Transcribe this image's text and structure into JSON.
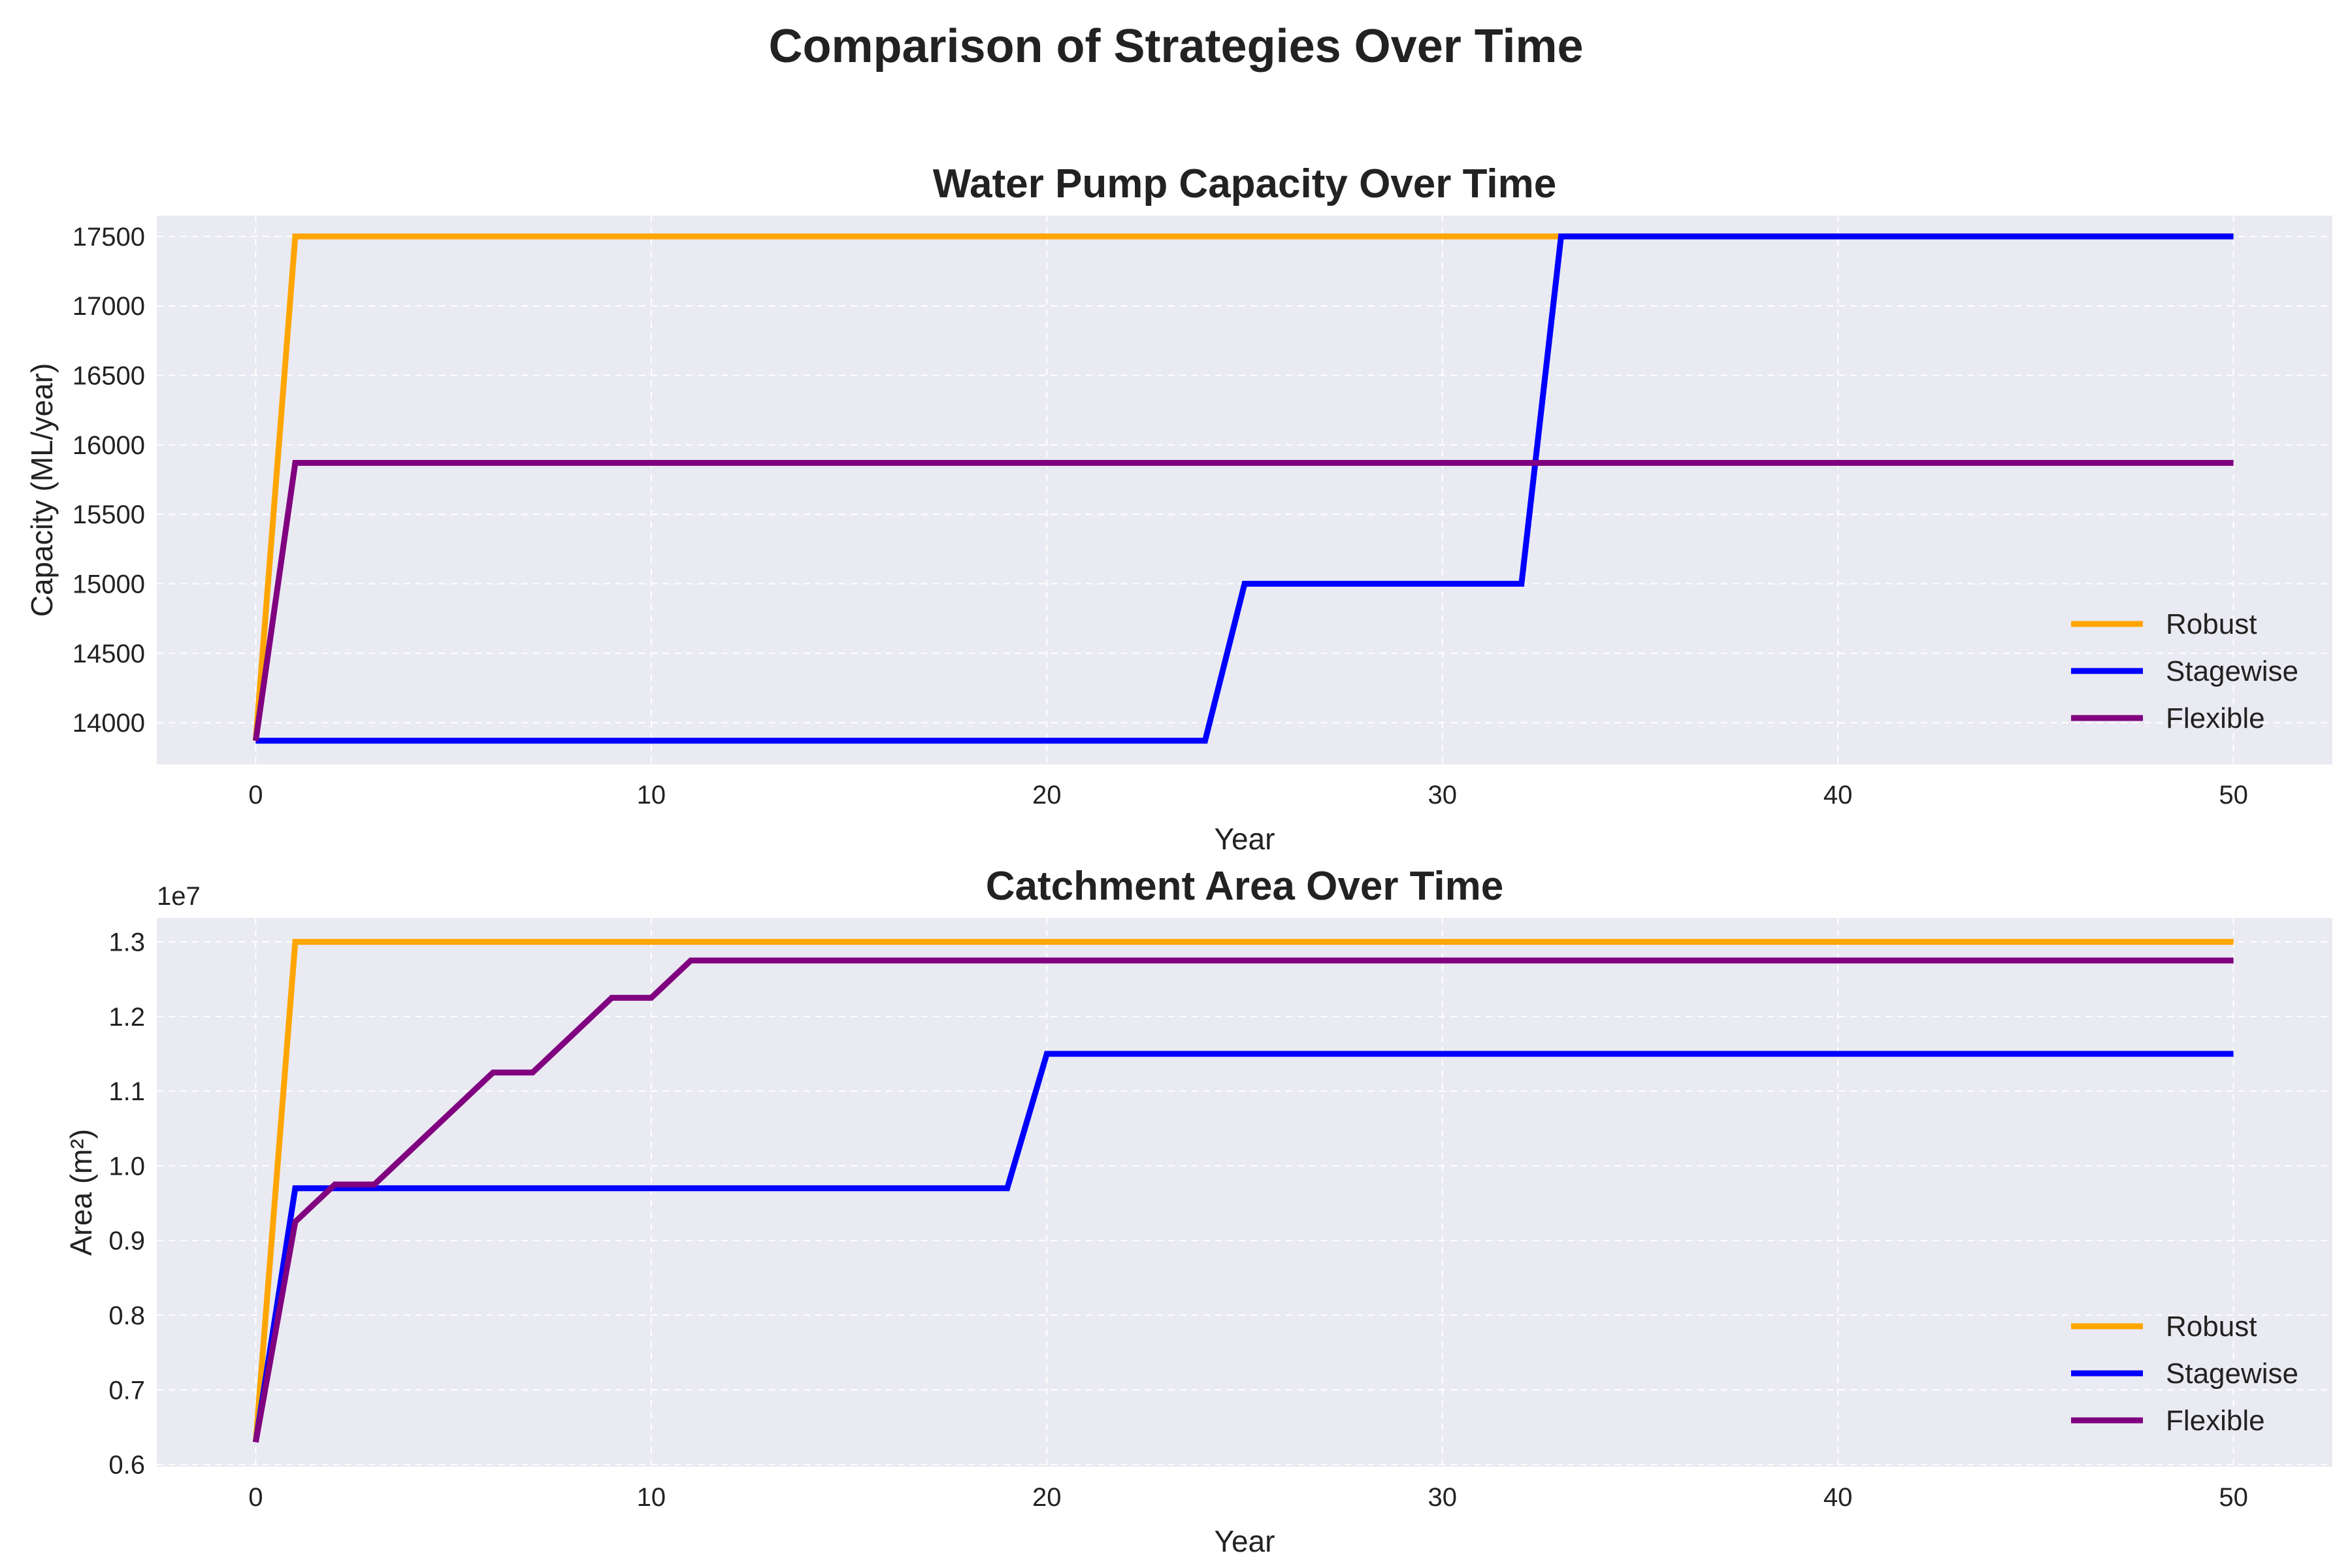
{
  "figure": {
    "suptitle": "Comparison of Strategies Over Time"
  },
  "colors": {
    "Robust": "#FFA500",
    "Stagewise": "#0000FF",
    "Flexible": "#800080",
    "axes_bg": "#EAEAF2",
    "grid": "#FFFFFF"
  },
  "chart_data": [
    {
      "type": "line",
      "title": "Water Pump Capacity Over Time",
      "xlabel": "Year",
      "ylabel": "Capacity (ML/year)",
      "xlim": [
        -2.5,
        52.5
      ],
      "ylim": [
        13700,
        17650
      ],
      "xticks": [
        0,
        10,
        20,
        30,
        40,
        50
      ],
      "yticks": [
        14000,
        14500,
        15000,
        15500,
        16000,
        16500,
        17000,
        17500
      ],
      "offset_text": "",
      "grid": true,
      "legend": "lower right",
      "series": [
        {
          "name": "Robust",
          "x": [
            0,
            1,
            50
          ],
          "y": [
            13870,
            17500,
            17500
          ]
        },
        {
          "name": "Stagewise",
          "x": [
            0,
            24,
            25,
            32,
            33,
            50
          ],
          "y": [
            13870,
            13870,
            15000,
            15000,
            17500,
            17500
          ]
        },
        {
          "name": "Flexible",
          "x": [
            0,
            1,
            50
          ],
          "y": [
            13870,
            15870,
            15870
          ]
        }
      ]
    },
    {
      "type": "line",
      "title": "Catchment Area Over Time",
      "xlabel": "Year",
      "ylabel": "Area (m²)",
      "xlim": [
        -2.5,
        52.5
      ],
      "ylim": [
        0.597,
        1.332
      ],
      "xticks": [
        0,
        10,
        20,
        30,
        40,
        50
      ],
      "yticks": [
        0.6,
        0.7,
        0.8,
        0.9,
        1.0,
        1.1,
        1.2,
        1.3
      ],
      "offset_text": "1e7",
      "grid": true,
      "legend": "lower right",
      "series": [
        {
          "name": "Robust",
          "x": [
            0,
            1,
            50
          ],
          "y": [
            0.63,
            1.3,
            1.3
          ]
        },
        {
          "name": "Stagewise",
          "x": [
            0,
            1,
            19,
            20,
            50
          ],
          "y": [
            0.63,
            0.97,
            0.97,
            1.15,
            1.15
          ]
        },
        {
          "name": "Flexible",
          "x": [
            0,
            1,
            2,
            3,
            6,
            7,
            9,
            10,
            11,
            50
          ],
          "y": [
            0.63,
            0.925,
            0.975,
            0.975,
            1.125,
            1.125,
            1.225,
            1.225,
            1.275,
            1.275
          ]
        }
      ]
    }
  ]
}
